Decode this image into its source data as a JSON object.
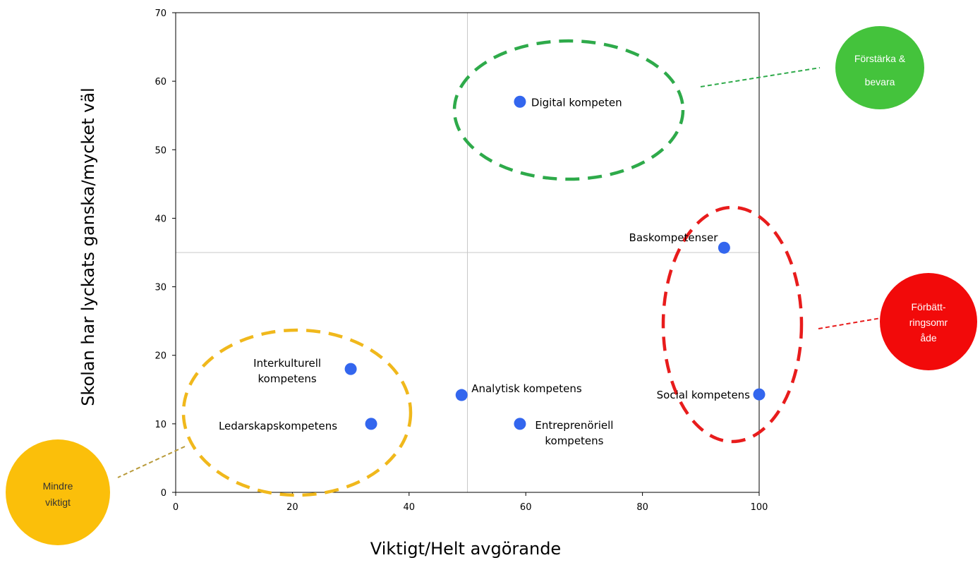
{
  "chart_data": {
    "type": "scatter",
    "xlabel": "Viktigt/Helt avgörande",
    "ylabel": "Skolan har lyckats ganska/mycket väl",
    "xlim": [
      0,
      100
    ],
    "ylim": [
      0,
      70
    ],
    "xticks": [
      0,
      20,
      40,
      60,
      80,
      100
    ],
    "yticks": [
      0,
      10,
      20,
      30,
      40,
      50,
      60,
      70
    ],
    "reference_lines": {
      "x": 50,
      "y": 35
    },
    "point_color": "#3366ee",
    "points": [
      {
        "label": "Digital kompeten",
        "label_lines": [
          "Digital kompeten"
        ],
        "x": 59,
        "y": 57
      },
      {
        "label": "Baskompetenser",
        "label_lines": [
          "Baskompetenser"
        ],
        "x": 94,
        "y": 35.7
      },
      {
        "label": "Interkulturell kompetens",
        "label_lines": [
          "Interkulturell",
          "kompetens"
        ],
        "x": 30,
        "y": 18
      },
      {
        "label": "Ledarskapskompetens",
        "label_lines": [
          "Ledarskapskompetens"
        ],
        "x": 33.5,
        "y": 10
      },
      {
        "label": "Analytisk kompetens",
        "label_lines": [
          "Analytisk kompetens"
        ],
        "x": 49,
        "y": 14.2
      },
      {
        "label": "Entreprenöriell kompetens",
        "label_lines": [
          "Entreprenöriell",
          "kompetens"
        ],
        "x": 59,
        "y": 10
      },
      {
        "label": "Social kompetens",
        "label_lines": [
          "Social kompetens"
        ],
        "x": 100,
        "y": 14.3
      }
    ],
    "groups": [
      {
        "name": "Förstärka & bevara",
        "lines": [
          "Förstärka &",
          "bevara"
        ],
        "color": "#2eaa4a",
        "bubble_color": "#44c33c",
        "text_color": "#ffffff"
      },
      {
        "name": "Förbättringsområde",
        "lines": [
          "Förbätt-",
          "ringsomr",
          "åde"
        ],
        "color": "#e81c1c",
        "bubble_color": "#f20a0a",
        "text_color": "#ffffff"
      },
      {
        "name": "Mindre viktigt",
        "lines": [
          "Mindre",
          "viktigt"
        ],
        "color": "#f0b81c",
        "bubble_color": "#fbbf0a",
        "text_color": "#333333"
      }
    ]
  }
}
